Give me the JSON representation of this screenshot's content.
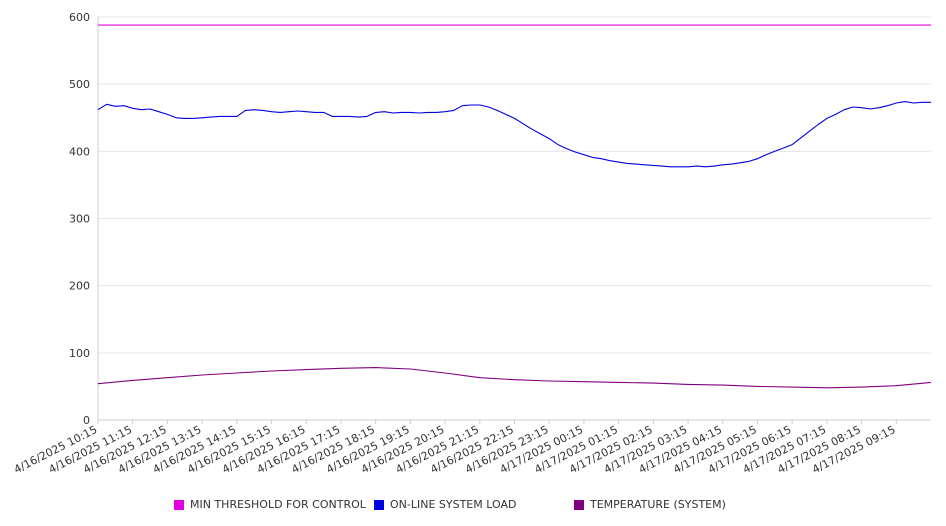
{
  "chart_data": {
    "type": "line",
    "title": "",
    "xlabel": "",
    "ylabel": "",
    "ylim": [
      0,
      600
    ],
    "yticks": [
      0,
      100,
      200,
      300,
      400,
      500,
      600
    ],
    "grid": true,
    "legend_position": "bottom",
    "x_tick_labels": [
      "4/16/2025 10:15",
      "4/16/2025 11:15",
      "4/16/2025 12:15",
      "4/16/2025 13:15",
      "4/16/2025 14:15",
      "4/16/2025 15:15",
      "4/16/2025 16:15",
      "4/16/2025 17:15",
      "4/16/2025 18:15",
      "4/16/2025 19:15",
      "4/16/2025 20:15",
      "4/16/2025 21:15",
      "4/16/2025 22:15",
      "4/16/2025 23:15",
      "4/17/2025 00:15",
      "4/17/2025 01:15",
      "4/17/2025 02:15",
      "4/17/2025 03:15",
      "4/17/2025 04:15",
      "4/17/2025 05:15",
      "4/17/2025 06:15",
      "4/17/2025 07:15",
      "4/17/2025 08:15",
      "4/17/2025 09:15"
    ],
    "x_range": [
      "4/16/2025 10:15",
      "4/17/2025 10:15"
    ],
    "series": [
      {
        "name": "MIN THRESHOLD FOR CONTROL",
        "color": "#e000e0",
        "x": [
          "4/16/2025 10:15",
          "4/17/2025 10:15"
        ],
        "values": [
          588,
          588
        ]
      },
      {
        "name": "ON-LINE SYSTEM LOAD",
        "color": "#0000e0",
        "x": [
          "4/16/2025 10:15",
          "4/16/2025 10:30",
          "4/16/2025 10:45",
          "4/16/2025 11:00",
          "4/16/2025 11:15",
          "4/16/2025 11:30",
          "4/16/2025 11:45",
          "4/16/2025 12:00",
          "4/16/2025 12:15",
          "4/16/2025 12:30",
          "4/16/2025 12:45",
          "4/16/2025 13:00",
          "4/16/2025 13:15",
          "4/16/2025 13:30",
          "4/16/2025 13:45",
          "4/16/2025 14:00",
          "4/16/2025 14:15",
          "4/16/2025 14:30",
          "4/16/2025 14:45",
          "4/16/2025 15:00",
          "4/16/2025 15:15",
          "4/16/2025 15:30",
          "4/16/2025 15:45",
          "4/16/2025 16:00",
          "4/16/2025 16:15",
          "4/16/2025 16:30",
          "4/16/2025 16:45",
          "4/16/2025 17:00",
          "4/16/2025 17:15",
          "4/16/2025 17:30",
          "4/16/2025 17:45",
          "4/16/2025 18:00",
          "4/16/2025 18:15",
          "4/16/2025 18:30",
          "4/16/2025 18:45",
          "4/16/2025 19:00",
          "4/16/2025 19:15",
          "4/16/2025 19:30",
          "4/16/2025 19:45",
          "4/16/2025 20:00",
          "4/16/2025 20:15",
          "4/16/2025 20:30",
          "4/16/2025 20:45",
          "4/16/2025 21:00",
          "4/16/2025 21:15",
          "4/16/2025 21:30",
          "4/16/2025 21:45",
          "4/16/2025 22:00",
          "4/16/2025 22:15",
          "4/16/2025 22:30",
          "4/16/2025 22:45",
          "4/16/2025 23:00",
          "4/16/2025 23:15",
          "4/16/2025 23:30",
          "4/16/2025 23:45",
          "4/17/2025 00:00",
          "4/17/2025 00:15",
          "4/17/2025 00:30",
          "4/17/2025 00:45",
          "4/17/2025 01:00",
          "4/17/2025 01:15",
          "4/17/2025 01:30",
          "4/17/2025 01:45",
          "4/17/2025 02:00",
          "4/17/2025 02:15",
          "4/17/2025 02:30",
          "4/17/2025 02:45",
          "4/17/2025 03:00",
          "4/17/2025 03:15",
          "4/17/2025 03:30",
          "4/17/2025 03:45",
          "4/17/2025 04:00",
          "4/17/2025 04:15",
          "4/17/2025 04:30",
          "4/17/2025 04:45",
          "4/17/2025 05:00",
          "4/17/2025 05:15",
          "4/17/2025 05:30",
          "4/17/2025 05:45",
          "4/17/2025 06:00",
          "4/17/2025 06:15",
          "4/17/2025 06:30",
          "4/17/2025 06:45",
          "4/17/2025 07:00",
          "4/17/2025 07:15",
          "4/17/2025 07:30",
          "4/17/2025 07:45",
          "4/17/2025 08:00",
          "4/17/2025 08:15",
          "4/17/2025 08:30",
          "4/17/2025 08:45",
          "4/17/2025 09:00",
          "4/17/2025 09:15",
          "4/17/2025 09:30",
          "4/17/2025 09:45",
          "4/17/2025 10:00",
          "4/17/2025 10:15"
        ],
        "values": [
          462,
          470,
          467,
          468,
          464,
          462,
          463,
          459,
          455,
          450,
          449,
          449,
          450,
          451,
          452,
          452,
          452,
          461,
          462,
          461,
          459,
          458,
          459,
          460,
          459,
          458,
          458,
          452,
          452,
          452,
          451,
          452,
          458,
          459,
          457,
          458,
          458,
          457,
          458,
          458,
          459,
          461,
          468,
          469,
          469,
          466,
          461,
          455,
          449,
          441,
          433,
          426,
          419,
          410,
          404,
          399,
          395,
          391,
          389,
          386,
          384,
          382,
          381,
          380,
          379,
          378,
          377,
          377,
          377,
          378,
          377,
          378,
          380,
          381,
          383,
          385,
          389,
          395,
          400,
          405,
          410,
          420,
          430,
          440,
          449,
          455,
          462,
          466,
          465,
          463,
          465,
          468,
          472,
          474,
          472,
          473,
          473
        ]
      },
      {
        "name": "TEMPERATURE (SYSTEM)",
        "color": "#800080",
        "x": [
          "4/16/2025 10:15",
          "4/16/2025 11:15",
          "4/16/2025 12:15",
          "4/16/2025 13:15",
          "4/16/2025 14:15",
          "4/16/2025 15:15",
          "4/16/2025 16:15",
          "4/16/2025 17:15",
          "4/16/2025 18:15",
          "4/16/2025 19:15",
          "4/16/2025 20:15",
          "4/16/2025 21:15",
          "4/16/2025 22:15",
          "4/16/2025 23:15",
          "4/17/2025 00:15",
          "4/17/2025 01:15",
          "4/17/2025 02:15",
          "4/17/2025 03:15",
          "4/17/2025 04:15",
          "4/17/2025 05:15",
          "4/17/2025 06:15",
          "4/17/2025 07:15",
          "4/17/2025 08:15",
          "4/17/2025 09:15",
          "4/17/2025 10:15"
        ],
        "values": [
          54,
          59,
          63,
          67,
          70,
          73,
          75,
          77,
          78,
          76,
          70,
          63,
          60,
          58,
          57,
          56,
          55,
          53,
          52,
          50,
          49,
          48,
          49,
          51,
          56
        ]
      }
    ]
  }
}
